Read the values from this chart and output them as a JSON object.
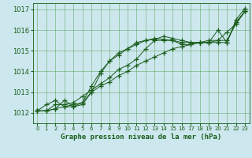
{
  "xlabel": "Graphe pression niveau de la mer (hPa)",
  "xlim": [
    -0.5,
    23.5
  ],
  "ylim": [
    1011.5,
    1017.3
  ],
  "yticks": [
    1012,
    1013,
    1014,
    1015,
    1016,
    1017
  ],
  "xticks": [
    0,
    1,
    2,
    3,
    4,
    5,
    6,
    7,
    8,
    9,
    10,
    11,
    12,
    13,
    14,
    15,
    16,
    17,
    18,
    19,
    20,
    21,
    22,
    23
  ],
  "bg_color": "#cce8ee",
  "grid_color": "#5aa05a",
  "line_color": "#1a5c1a",
  "series": [
    [
      1012.1,
      1012.1,
      1012.2,
      1012.6,
      1012.3,
      1012.4,
      1013.0,
      1013.9,
      1014.5,
      1014.8,
      1015.1,
      1015.4,
      1015.5,
      1015.55,
      1015.7,
      1015.6,
      1015.5,
      1015.4,
      1015.4,
      1015.4,
      1015.4,
      1015.4,
      1016.4,
      1016.9
    ],
    [
      1012.1,
      1012.1,
      1012.2,
      1012.3,
      1012.3,
      1012.5,
      1013.0,
      1013.3,
      1013.5,
      1013.8,
      1014.0,
      1014.3,
      1014.5,
      1014.7,
      1014.9,
      1015.1,
      1015.2,
      1015.3,
      1015.4,
      1015.4,
      1015.5,
      1015.5,
      1016.3,
      1016.9
    ],
    [
      1012.1,
      1012.1,
      1012.4,
      1012.4,
      1012.5,
      1012.8,
      1013.1,
      1013.4,
      1013.7,
      1014.1,
      1014.3,
      1014.6,
      1015.1,
      1015.5,
      1015.5,
      1015.5,
      1015.3,
      1015.3,
      1015.4,
      1015.5,
      1015.5,
      1015.9,
      1016.3,
      1016.9
    ],
    [
      1012.1,
      1012.4,
      1012.6,
      1012.3,
      1012.4,
      1012.5,
      1013.3,
      1014.0,
      1014.5,
      1014.9,
      1015.1,
      1015.3,
      1015.5,
      1015.6,
      1015.55,
      1015.5,
      1015.4,
      1015.4,
      1015.4,
      1015.4,
      1016.0,
      1015.4,
      1016.5,
      1017.05
    ]
  ],
  "ytick_fontsize": 6,
  "xtick_fontsize": 5,
  "xlabel_fontsize": 6.5
}
